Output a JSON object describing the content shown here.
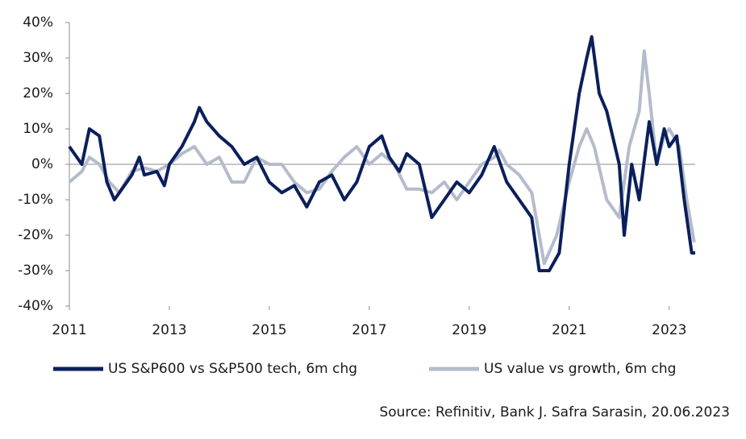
{
  "chart_data": {
    "type": "line",
    "source": "Source: Refinitiv, Bank J. Safra Sarasin, 20.06.2023",
    "xlim": [
      2011,
      2023.52
    ],
    "xticks": [
      2011,
      2013,
      2015,
      2017,
      2019,
      2021,
      2023
    ],
    "ylim": [
      -40,
      40
    ],
    "yticks": [
      {
        "value": -40,
        "label": "-40%"
      },
      {
        "value": -30,
        "label": "-30%"
      },
      {
        "value": -20,
        "label": "-20%"
      },
      {
        "value": -10,
        "label": "-10%"
      },
      {
        "value": 0,
        "label": "0%"
      },
      {
        "value": 10,
        "label": "10%"
      },
      {
        "value": 20,
        "label": "20%"
      },
      {
        "value": 30,
        "label": "30%"
      },
      {
        "value": 40,
        "label": "40%"
      }
    ],
    "series": [
      {
        "name": "US S&P600 vs S&P500 tech, 6m chg",
        "color": "#0b1f5c",
        "x": [
          2011.0,
          2011.25,
          2011.4,
          2011.6,
          2011.75,
          2011.9,
          2012.0,
          2012.25,
          2012.4,
          2012.5,
          2012.75,
          2012.9,
          2013.0,
          2013.25,
          2013.5,
          2013.6,
          2013.75,
          2014.0,
          2014.25,
          2014.5,
          2014.75,
          2015.0,
          2015.25,
          2015.5,
          2015.75,
          2016.0,
          2016.25,
          2016.5,
          2016.75,
          2017.0,
          2017.25,
          2017.4,
          2017.6,
          2017.75,
          2018.0,
          2018.25,
          2018.5,
          2018.75,
          2019.0,
          2019.25,
          2019.5,
          2019.75,
          2020.0,
          2020.25,
          2020.4,
          2020.6,
          2020.8,
          2021.0,
          2021.2,
          2021.35,
          2021.45,
          2021.6,
          2021.75,
          2022.0,
          2022.1,
          2022.25,
          2022.4,
          2022.6,
          2022.75,
          2022.9,
          2023.0,
          2023.15,
          2023.3,
          2023.45,
          2023.52
        ],
        "values": [
          5,
          0,
          10,
          8,
          -5,
          -10,
          -8,
          -3,
          2,
          -3,
          -2,
          -6,
          0,
          5,
          12,
          16,
          12,
          8,
          5,
          0,
          2,
          -5,
          -8,
          -6,
          -12,
          -5,
          -3,
          -10,
          -5,
          5,
          8,
          2,
          -2,
          3,
          0,
          -15,
          -10,
          -5,
          -8,
          -3,
          5,
          -5,
          -10,
          -15,
          -30,
          -30,
          -25,
          0,
          20,
          30,
          36,
          20,
          15,
          0,
          -20,
          0,
          -10,
          12,
          0,
          10,
          5,
          8,
          -10,
          -25,
          -25
        ]
      },
      {
        "name": "US value vs growth, 6m chg",
        "color": "#b4bccb",
        "x": [
          2011.0,
          2011.25,
          2011.4,
          2011.6,
          2011.8,
          2012.0,
          2012.25,
          2012.5,
          2012.75,
          2013.0,
          2013.25,
          2013.5,
          2013.75,
          2014.0,
          2014.25,
          2014.5,
          2014.75,
          2015.0,
          2015.25,
          2015.5,
          2015.75,
          2016.0,
          2016.25,
          2016.5,
          2016.75,
          2017.0,
          2017.25,
          2017.5,
          2017.75,
          2018.0,
          2018.25,
          2018.5,
          2018.75,
          2019.0,
          2019.25,
          2019.5,
          2019.6,
          2019.75,
          2020.0,
          2020.25,
          2020.5,
          2020.75,
          2021.0,
          2021.2,
          2021.35,
          2021.5,
          2021.75,
          2022.0,
          2022.2,
          2022.4,
          2022.5,
          2022.6,
          2022.75,
          2022.9,
          2023.0,
          2023.2,
          2023.35,
          2023.5
        ],
        "values": [
          -5,
          -2,
          2,
          0,
          -5,
          -8,
          -2,
          -1,
          -2,
          0,
          3,
          5,
          0,
          2,
          -5,
          -5,
          2,
          0,
          0,
          -5,
          -8,
          -7,
          -2,
          2,
          5,
          0,
          3,
          0,
          -7,
          -7,
          -8,
          -5,
          -10,
          -5,
          0,
          2,
          4,
          0,
          -3,
          -8,
          -28,
          -20,
          -5,
          5,
          10,
          5,
          -10,
          -15,
          5,
          15,
          32,
          20,
          0,
          8,
          10,
          5,
          -10,
          -22
        ]
      }
    ]
  }
}
